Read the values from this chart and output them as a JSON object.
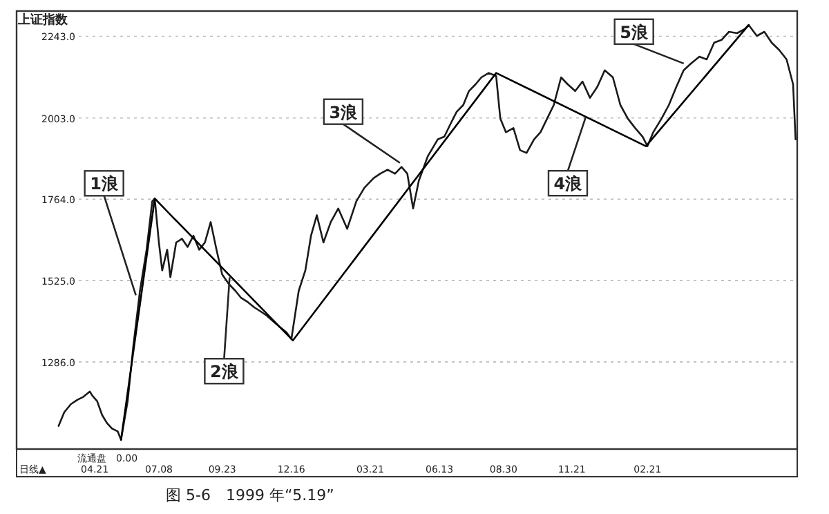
{
  "chart_data": {
    "type": "line",
    "title": "上证指数",
    "xlim": [
      "1999-01-16",
      "2001-08-22"
    ],
    "ylim": [
      1030,
      2317
    ],
    "xticks": [
      {
        "value": "1999-04-21",
        "label": "04.21"
      },
      {
        "value": "1999-07-08",
        "label": "07.08"
      },
      {
        "value": "1999-09-23",
        "label": "09.23"
      },
      {
        "value": "1999-12-16",
        "label": "12.16"
      },
      {
        "value": "2000-03-21",
        "label": "03.21"
      },
      {
        "value": "2000-06-13",
        "label": "06.13"
      },
      {
        "value": "2000-08-30",
        "label": "08.30"
      },
      {
        "value": "2000-11-21",
        "label": "11.21"
      },
      {
        "value": "2001-02-21",
        "label": "02.21"
      }
    ],
    "yticks": [
      {
        "value": 1286,
        "label": "1286.0"
      },
      {
        "value": 1525,
        "label": "1525.0"
      },
      {
        "value": 1764,
        "label": "1764.0"
      },
      {
        "value": 2003,
        "label": "2003.0"
      },
      {
        "value": 2243,
        "label": "2243.0"
      }
    ],
    "grid": "y",
    "series": [
      {
        "color": "#1a1a1a",
        "x": [
          "1999-03-08",
          "1999-03-15",
          "1999-03-23",
          "1999-03-31",
          "1999-04-07",
          "1999-04-15",
          "1999-04-18",
          "1999-04-24",
          "1999-04-30",
          "1999-05-06",
          "1999-05-12",
          "1999-05-19",
          "1999-05-23",
          "1999-05-31",
          "1999-06-07",
          "1999-06-15",
          "1999-06-23",
          "1999-06-30",
          "1999-07-03",
          "1999-07-08",
          "1999-07-12",
          "1999-07-18",
          "1999-07-22",
          "1999-07-29",
          "1999-08-05",
          "1999-08-12",
          "1999-08-19",
          "1999-08-26",
          "1999-09-02",
          "1999-09-09",
          "1999-09-16",
          "1999-09-23",
          "1999-10-01",
          "1999-10-09",
          "1999-10-16",
          "1999-10-24",
          "1999-11-01",
          "1999-11-09",
          "1999-11-16",
          "1999-11-24",
          "1999-12-02",
          "1999-12-10",
          "1999-12-16",
          "1999-12-25",
          "2000-01-02",
          "2000-01-09",
          "2000-01-16",
          "2000-01-24",
          "2000-02-02",
          "2000-02-11",
          "2000-02-22",
          "2000-03-04",
          "2000-03-14",
          "2000-03-25",
          "2000-04-02",
          "2000-04-11",
          "2000-04-20",
          "2000-04-28",
          "2000-05-05",
          "2000-05-12",
          "2000-05-19",
          "2000-05-30",
          "2000-06-11",
          "2000-06-19",
          "2000-06-27",
          "2000-07-04",
          "2000-07-12",
          "2000-07-19",
          "2000-07-27",
          "2000-08-03",
          "2000-08-12",
          "2000-08-21",
          "2000-08-26",
          "2000-09-02",
          "2000-09-11",
          "2000-09-19",
          "2000-09-27",
          "2000-10-06",
          "2000-10-14",
          "2000-10-22",
          "2000-10-30",
          "2000-11-08",
          "2000-11-16",
          "2000-11-25",
          "2000-12-04",
          "2000-12-13",
          "2000-12-22",
          "2000-12-31",
          "2001-01-10",
          "2001-01-19",
          "2001-01-28",
          "2001-02-06",
          "2001-02-15",
          "2001-02-21",
          "2001-02-28",
          "2001-03-10",
          "2001-03-19",
          "2001-03-28",
          "2001-04-06",
          "2001-04-15",
          "2001-04-25",
          "2001-05-04",
          "2001-05-13",
          "2001-05-22",
          "2001-05-31",
          "2001-06-10",
          "2001-06-19",
          "2001-06-24",
          "2001-07-04",
          "2001-07-13",
          "2001-07-22",
          "2001-07-31",
          "2001-08-09",
          "2001-08-17",
          "2001-08-20"
        ],
        "values": [
          1098,
          1138,
          1162,
          1175,
          1183,
          1199,
          1187,
          1171,
          1130,
          1106,
          1090,
          1082,
          1057,
          1171,
          1333,
          1495,
          1616,
          1758,
          1766,
          1637,
          1555,
          1616,
          1535,
          1637,
          1648,
          1624,
          1657,
          1616,
          1637,
          1697,
          1616,
          1543,
          1515,
          1495,
          1474,
          1462,
          1446,
          1434,
          1422,
          1405,
          1389,
          1373,
          1353,
          1495,
          1555,
          1657,
          1717,
          1637,
          1697,
          1737,
          1677,
          1758,
          1798,
          1826,
          1839,
          1851,
          1839,
          1859,
          1839,
          1737,
          1818,
          1891,
          1940,
          1948,
          1988,
          2021,
          2041,
          2082,
          2102,
          2122,
          2135,
          2126,
          2001,
          1961,
          1973,
          1908,
          1900,
          1940,
          1961,
          2001,
          2041,
          2122,
          2102,
          2082,
          2110,
          2062,
          2094,
          2143,
          2122,
          2041,
          2001,
          1973,
          1948,
          1920,
          1961,
          2001,
          2041,
          2094,
          2143,
          2163,
          2183,
          2175,
          2224,
          2232,
          2256,
          2252,
          2264,
          2276,
          2244,
          2256,
          2224,
          2203,
          2175,
          2102,
          1940
        ]
      },
      {
        "color": "#000000",
        "x": [
          "1999-05-23",
          "1999-07-03",
          "1999-12-18",
          "2000-08-21",
          "2001-02-19",
          "2001-06-24"
        ],
        "values": [
          1057,
          1766,
          1349,
          2135,
          1920,
          2276
        ]
      }
    ],
    "annotations": [
      {
        "text": "1浪",
        "x": "1999-06-10",
        "y": 1482
      },
      {
        "text": "2浪",
        "x": "1999-10-02",
        "y": 1535
      },
      {
        "text": "3浪",
        "x": "2000-04-26",
        "y": 1871
      },
      {
        "text": "4浪",
        "x": "2000-12-08",
        "y": 2006
      },
      {
        "text": "5浪",
        "x": "2001-04-06",
        "y": 2163
      },
      "流通盘　0.00",
      "日线▲",
      "图 5-6　1999 年“5.19”"
    ]
  }
}
